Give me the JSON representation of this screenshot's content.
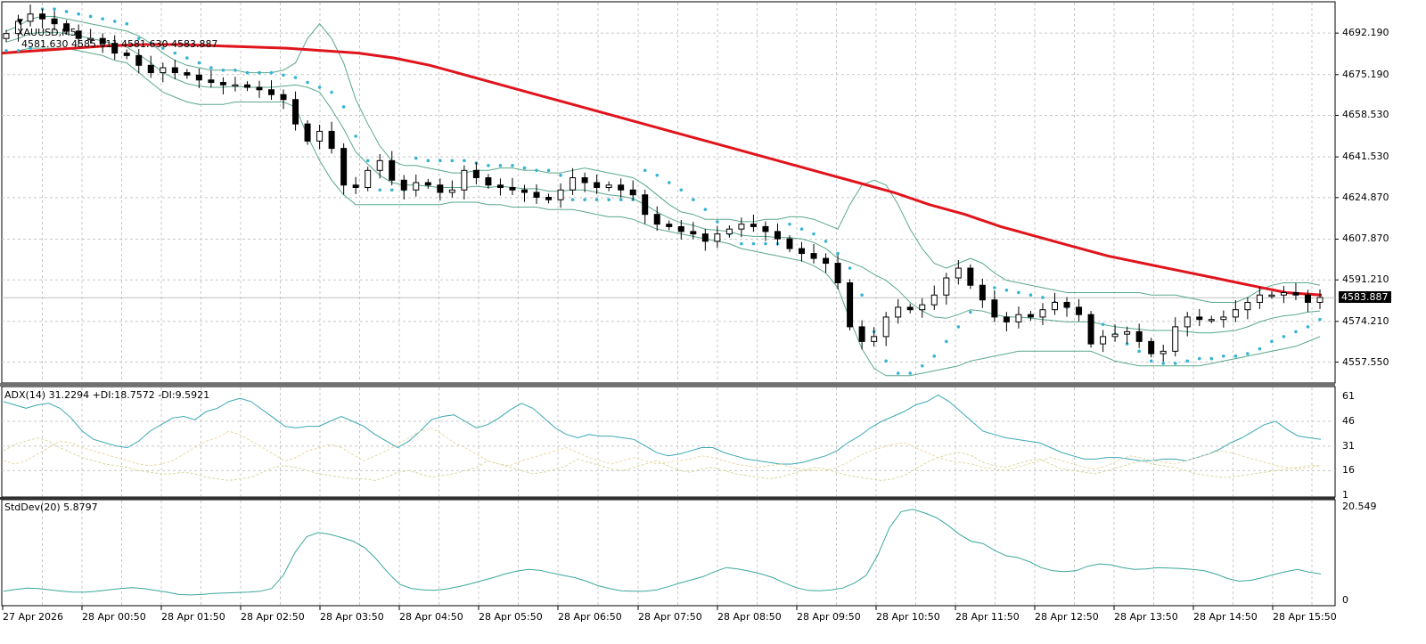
{
  "header": {
    "symbol_label": "XAUUSD,M5",
    "ohlc": "4581.630 4585.611 4581.630 4583.887",
    "collapse_icon": "triangle-down-icon"
  },
  "colors": {
    "background": "#ffffff",
    "grid": "#c8c8c8",
    "frame": "#000000",
    "candle_up_body": "#ffffff",
    "candle_down_body": "#000000",
    "candle_outline": "#000000",
    "ma": "#e0141c",
    "bollinger": "#5aa88a",
    "sar": "#35b4d2",
    "adx_main": "#3aa8b4",
    "di_plus": "#d8d8a0",
    "di_minus": "#e8d8a8",
    "stddev": "#3aa89a",
    "bid_line": "#c0c0c0",
    "price_tag_bg": "#000000",
    "price_tag_fg": "#ffffff"
  },
  "chart_data": [
    {
      "type": "candlestick",
      "title": "XAUUSD,M5",
      "panel": "main",
      "y_ticks": [
        "4692.190",
        "4675.190",
        "4658.530",
        "4641.530",
        "4624.870",
        "4607.870",
        "4591.210",
        "4574.210",
        "4557.550"
      ],
      "y_tick_values": [
        4692.19,
        4675.19,
        4658.53,
        4641.53,
        4624.87,
        4607.87,
        4591.21,
        4574.21,
        4557.55
      ],
      "ylim": [
        4549.0,
        4705.0
      ],
      "current_price": "4583.887",
      "current_price_value": 4583.887,
      "x_ticks": [
        "27 Apr 2026",
        "28 Apr 00:50",
        "28 Apr 01:50",
        "28 Apr 02:50",
        "28 Apr 03:50",
        "28 Apr 04:50",
        "28 Apr 05:50",
        "28 Apr 06:50",
        "28 Apr 07:50",
        "28 Apr 08:50",
        "28 Apr 09:50",
        "28 Apr 10:50",
        "28 Apr 11:50",
        "28 Apr 12:50",
        "28 Apr 13:50",
        "28 Apr 14:50",
        "28 Apr 15:50"
      ],
      "ma_series": [
        4684,
        4685,
        4686,
        4687,
        4687.5,
        4687.5,
        4687,
        4686.5,
        4686,
        4685,
        4684,
        4682,
        4679,
        4675,
        4671,
        4667,
        4663,
        4659,
        4655,
        4651,
        4647,
        4643,
        4639,
        4635,
        4631,
        4627,
        4622,
        4618,
        4613,
        4609,
        4605,
        4601,
        4598,
        4595,
        4592,
        4589,
        4586,
        4585
      ],
      "closes": [
        4692,
        4697,
        4700,
        4698,
        4696,
        4693,
        4690,
        4690,
        4688,
        4684,
        4683,
        4679,
        4676,
        4678,
        4676,
        4675,
        4673,
        4672,
        4671,
        4671,
        4670,
        4669,
        4667,
        4665,
        4655,
        4648,
        4652,
        4645,
        4630,
        4629,
        4636,
        4640,
        4632,
        4628,
        4631,
        4630,
        4627,
        4628,
        4636,
        4633,
        4630,
        4629,
        4628,
        4627,
        4625,
        4624,
        4628,
        4633,
        4631,
        4629,
        4630,
        4628,
        4626,
        4618,
        4614,
        4613,
        4611,
        4610,
        4607,
        4610,
        4612,
        4614,
        4613,
        4611,
        4608,
        4604,
        4602,
        4600,
        4598,
        4590,
        4572,
        4566,
        4568,
        4576,
        4580,
        4579,
        4581,
        4585,
        4592,
        4596,
        4589,
        4583,
        4576,
        4574,
        4577,
        4576,
        4579,
        4582,
        4580,
        4577,
        4565,
        4568,
        4569,
        4570,
        4566,
        4561,
        4562,
        4572,
        4576,
        4575,
        4575,
        4576,
        4579,
        4582,
        4585,
        4585,
        4586,
        4585,
        4582,
        4584
      ],
      "opens": [
        4690,
        4692,
        4697,
        4700,
        4698,
        4696,
        4693,
        4690,
        4690,
        4688,
        4684,
        4683,
        4679,
        4676,
        4678,
        4676,
        4675,
        4673,
        4672,
        4671,
        4671,
        4670,
        4669,
        4667,
        4665,
        4655,
        4648,
        4652,
        4645,
        4630,
        4629,
        4636,
        4640,
        4632,
        4628,
        4631,
        4630,
        4627,
        4628,
        4636,
        4633,
        4630,
        4629,
        4628,
        4627,
        4625,
        4624,
        4628,
        4633,
        4631,
        4629,
        4630,
        4628,
        4626,
        4618,
        4614,
        4613,
        4611,
        4610,
        4607,
        4610,
        4612,
        4614,
        4613,
        4611,
        4608,
        4604,
        4602,
        4600,
        4598,
        4590,
        4572,
        4566,
        4568,
        4576,
        4580,
        4579,
        4581,
        4585,
        4592,
        4596,
        4589,
        4583,
        4576,
        4574,
        4577,
        4576,
        4579,
        4582,
        4580,
        4577,
        4565,
        4568,
        4569,
        4570,
        4566,
        4561,
        4562,
        4572,
        4576,
        4575,
        4575,
        4576,
        4579,
        4582,
        4585,
        4585,
        4586,
        4585,
        4582
      ],
      "bb_upper": [
        4693,
        4695,
        4698,
        4699,
        4699,
        4698,
        4697,
        4696,
        4695,
        4694,
        4693,
        4691,
        4688,
        4684,
        4681,
        4679,
        4678,
        4677,
        4677,
        4677,
        4676,
        4676,
        4676,
        4677,
        4680,
        4690,
        4696,
        4690,
        4680,
        4665,
        4655,
        4646,
        4640,
        4638,
        4638,
        4637,
        4636,
        4635,
        4635,
        4636,
        4636,
        4637,
        4637,
        4636,
        4636,
        4635,
        4635,
        4636,
        4637,
        4636,
        4635,
        4634,
        4633,
        4630,
        4626,
        4622,
        4619,
        4618,
        4616,
        4616,
        4616,
        4615,
        4615,
        4616,
        4616,
        4617,
        4617,
        4616,
        4614,
        4612,
        4622,
        4630,
        4632,
        4630,
        4622,
        4612,
        4604,
        4598,
        4596,
        4598,
        4600,
        4598,
        4594,
        4591,
        4590,
        4589,
        4588,
        4587,
        4586,
        4586,
        4586,
        4586,
        4586,
        4586,
        4586,
        4585,
        4585,
        4585,
        4584,
        4583,
        4582,
        4582,
        4582,
        4584,
        4587,
        4589,
        4590,
        4590,
        4590,
        4589
      ],
      "bb_lower": [
        4684,
        4685,
        4686,
        4686,
        4686,
        4686,
        4685,
        4684,
        4683,
        4681,
        4680,
        4676,
        4672,
        4668,
        4666,
        4664,
        4663,
        4663,
        4663,
        4664,
        4664,
        4664,
        4664,
        4664,
        4662,
        4650,
        4640,
        4632,
        4626,
        4622,
        4622,
        4622,
        4622,
        4622,
        4622,
        4622,
        4622,
        4623,
        4623,
        4623,
        4622,
        4622,
        4621,
        4621,
        4621,
        4620,
        4620,
        4620,
        4619,
        4618,
        4617,
        4617,
        4616,
        4614,
        4612,
        4611,
        4610,
        4609,
        4608,
        4607,
        4606,
        4604,
        4603,
        4602,
        4601,
        4600,
        4599,
        4597,
        4594,
        4588,
        4575,
        4563,
        4555,
        4552,
        4552,
        4552,
        4553,
        4554,
        4555,
        4556,
        4558,
        4559,
        4560,
        4561,
        4562,
        4562,
        4562,
        4562,
        4562,
        4562,
        4562,
        4560,
        4558,
        4557,
        4556,
        4556,
        4556,
        4556,
        4556,
        4556,
        4557,
        4558,
        4559,
        4560,
        4561,
        4562,
        4563,
        4564,
        4566,
        4568
      ],
      "sar": [
        4685,
        4685,
        4686,
        4702,
        4702,
        4701,
        4700,
        4699,
        4698,
        4697,
        4696,
        4690,
        4688,
        4686,
        4684,
        4682,
        4680,
        4678,
        4677,
        4677,
        4676,
        4676,
        4676,
        4675,
        4674,
        4672,
        4670,
        4668,
        4662,
        4650,
        4640,
        4628,
        4628,
        4628,
        4641,
        4640,
        4640,
        4640,
        4640,
        4639,
        4638,
        4638,
        4638,
        4637,
        4636,
        4636,
        4634,
        4624,
        4624,
        4624,
        4624,
        4624,
        4624,
        4636,
        4634,
        4631,
        4628,
        4624,
        4620,
        4615,
        4610,
        4606,
        4606,
        4606,
        4606,
        4614,
        4612,
        4610,
        4607,
        4602,
        4596,
        4585,
        4570,
        4558,
        4553,
        4553,
        4556,
        4560,
        4566,
        4572,
        4578,
        4584,
        4588,
        4587,
        4586,
        4585,
        4584,
        4582,
        4580,
        4578,
        4576,
        4573,
        4569,
        4565,
        4562,
        4558,
        4557,
        4557,
        4558,
        4559,
        4559,
        4560,
        4560,
        4561,
        4563,
        4566,
        4568,
        4570,
        4572,
        4575
      ]
    },
    {
      "type": "line",
      "panel": "adx",
      "title": "ADX(14) 31.2294 +DI:18.7572 -DI:9.5921",
      "legend": [
        "ADX(14)",
        "+DI",
        "-DI"
      ],
      "values_label": {
        "adx": "31.2294",
        "di_plus": "18.7572",
        "di_minus": "9.5921"
      },
      "y_ticks": [
        "61",
        "46",
        "31",
        "16",
        "1"
      ],
      "ylim": [
        1,
        65
      ],
      "series": [
        {
          "name": "ADX",
          "values": [
            58,
            56,
            54,
            56,
            57,
            54,
            48,
            40,
            35,
            33,
            31,
            30,
            34,
            40,
            44,
            48,
            49,
            47,
            52,
            54,
            58,
            60,
            58,
            53,
            48,
            43,
            42,
            43,
            43,
            46,
            49,
            46,
            43,
            38,
            34,
            30,
            34,
            40,
            47,
            49,
            50,
            46,
            42,
            44,
            48,
            53,
            57,
            54,
            48,
            42,
            38,
            36,
            38,
            37,
            37,
            36,
            35,
            31,
            27,
            25,
            26,
            28,
            30,
            30,
            27,
            25,
            23,
            22,
            21,
            20,
            20,
            21,
            23,
            25,
            28,
            33,
            37,
            42,
            46,
            49,
            52,
            56,
            58,
            62,
            58,
            52,
            46,
            40,
            38,
            36,
            35,
            34,
            33,
            30,
            27,
            25,
            23,
            23,
            24,
            24,
            23,
            22,
            22,
            23,
            23,
            22,
            24,
            26,
            29,
            33,
            36,
            40,
            44,
            46,
            41,
            37,
            36,
            35
          ]
        },
        {
          "name": "+DI",
          "values": [
            28,
            32,
            34,
            36,
            34,
            30,
            27,
            24,
            22,
            20,
            19,
            18,
            16,
            15,
            14,
            14,
            15,
            14,
            12,
            11,
            10,
            11,
            12,
            15,
            18,
            19,
            18,
            16,
            14,
            13,
            12,
            11,
            11,
            10,
            12,
            15,
            16,
            14,
            12,
            13,
            14,
            16,
            18,
            22,
            20,
            18,
            16,
            14,
            15,
            17,
            19,
            23,
            21,
            19,
            17,
            16,
            18,
            20,
            22,
            19,
            16,
            15,
            17,
            18,
            16,
            14,
            13,
            12,
            11,
            12,
            14,
            16,
            18,
            17,
            15,
            13,
            12,
            11,
            10,
            11,
            13,
            17,
            21,
            24,
            26,
            27,
            25,
            21,
            19,
            18,
            20,
            22,
            23,
            20,
            17,
            16,
            15,
            14,
            16,
            18,
            20,
            22,
            20,
            19,
            18,
            16,
            14,
            13,
            12,
            12,
            13,
            14,
            15,
            16,
            17,
            18,
            19,
            19
          ]
        },
        {
          "name": "-DI",
          "values": [
            22,
            20,
            22,
            26,
            30,
            34,
            33,
            30,
            28,
            26,
            24,
            22,
            20,
            19,
            20,
            22,
            26,
            30,
            34,
            36,
            40,
            38,
            34,
            30,
            26,
            22,
            24,
            28,
            30,
            32,
            30,
            26,
            22,
            25,
            28,
            32,
            36,
            40,
            42,
            38,
            33,
            30,
            26,
            22,
            20,
            19,
            22,
            24,
            26,
            28,
            30,
            27,
            24,
            22,
            20,
            22,
            24,
            22,
            20,
            21,
            22,
            23,
            25,
            24,
            22,
            20,
            19,
            18,
            19,
            20,
            18,
            17,
            16,
            16,
            18,
            21,
            25,
            28,
            30,
            32,
            33,
            30,
            27,
            24,
            22,
            21,
            20,
            18,
            17,
            16,
            18,
            20,
            22,
            24,
            22,
            20,
            18,
            17,
            19,
            22,
            25,
            24,
            22,
            21,
            20,
            22,
            24,
            26,
            28,
            27,
            25,
            23,
            21,
            19,
            18,
            17,
            18,
            19
          ]
        }
      ]
    },
    {
      "type": "line",
      "panel": "stddev",
      "title": "StdDev(20) 5.8797",
      "value_label": "5.8797",
      "y_ticks": [
        "20.549",
        "0"
      ],
      "ylim": [
        0,
        20.549
      ],
      "series": [
        {
          "name": "StdDev(20)",
          "values": [
            2.0,
            2.4,
            2.7,
            2.6,
            2.3,
            2.0,
            1.8,
            1.8,
            2.0,
            2.3,
            2.6,
            2.8,
            2.6,
            2.2,
            1.8,
            1.3,
            1.2,
            1.3,
            1.5,
            1.6,
            1.7,
            1.8,
            2.0,
            2.6,
            5.5,
            10.5,
            14.0,
            14.9,
            14.5,
            13.8,
            13.0,
            11.5,
            9.0,
            6.0,
            3.5,
            2.6,
            2.3,
            2.2,
            2.5,
            3.0,
            3.6,
            4.3,
            5.0,
            5.8,
            6.4,
            6.8,
            6.6,
            6.0,
            5.5,
            5.0,
            4.2,
            3.2,
            2.6,
            2.1,
            2.0,
            2.0,
            2.3,
            3.0,
            3.8,
            4.5,
            5.2,
            6.3,
            7.2,
            6.9,
            6.4,
            5.8,
            5.0,
            3.8,
            2.8,
            2.2,
            2.1,
            2.3,
            2.7,
            3.8,
            5.5,
            10.0,
            16.0,
            19.5,
            20.0,
            19.2,
            18.2,
            16.5,
            14.5,
            13.0,
            12.5,
            11.0,
            9.8,
            9.4,
            8.5,
            7.2,
            6.5,
            6.3,
            6.5,
            7.5,
            8.0,
            7.8,
            7.2,
            6.8,
            6.9,
            7.2,
            7.1,
            7.0,
            6.8,
            6.5,
            5.8,
            4.8,
            4.2,
            4.4,
            5.0,
            5.7,
            6.3,
            6.8,
            6.2,
            5.8
          ]
        }
      ]
    }
  ]
}
